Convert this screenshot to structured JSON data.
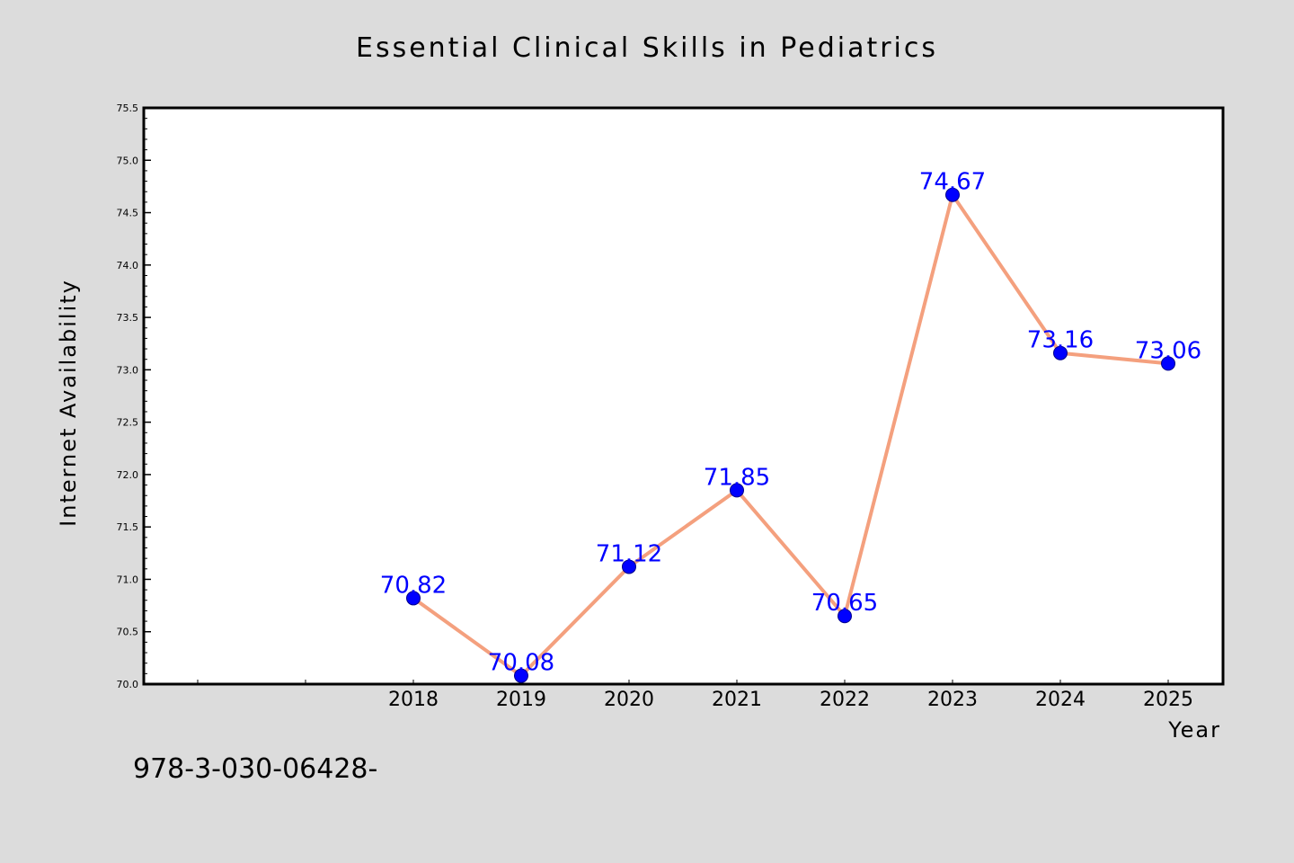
{
  "chart_data": {
    "type": "line",
    "title": "Essential Clinical Skills in Pediatrics",
    "xlabel": "Year",
    "ylabel": "Internet Availability",
    "categories": [
      "2018",
      "2019",
      "2020",
      "2021",
      "2022",
      "2023",
      "2024",
      "2025"
    ],
    "series": [
      {
        "values": [
          70.82,
          70.08,
          71.12,
          71.85,
          70.65,
          74.67,
          73.16,
          73.06
        ],
        "data_labels": [
          "70.82",
          "70.08",
          "71.12",
          "71.85",
          "70.65",
          "74.67",
          "73.16",
          "73.06"
        ],
        "line_color": "#f4a07e",
        "marker_color": "#0000ff"
      }
    ],
    "ylim": [
      70.0,
      75.5
    ],
    "yticks": [
      "70.0",
      "70.5",
      "71.0",
      "71.5",
      "72.0",
      "72.5",
      "73.0",
      "73.5",
      "74.0",
      "74.5",
      "75.0",
      "75.5"
    ],
    "grid": false,
    "legend": false
  },
  "footer": {
    "text": "978-3-030-06428-"
  },
  "colors": {
    "background": "#dcdcdc",
    "plot_background": "#ffffff",
    "line": "#f4a07e",
    "marker": "#0000ff",
    "data_label": "#0000ff"
  }
}
